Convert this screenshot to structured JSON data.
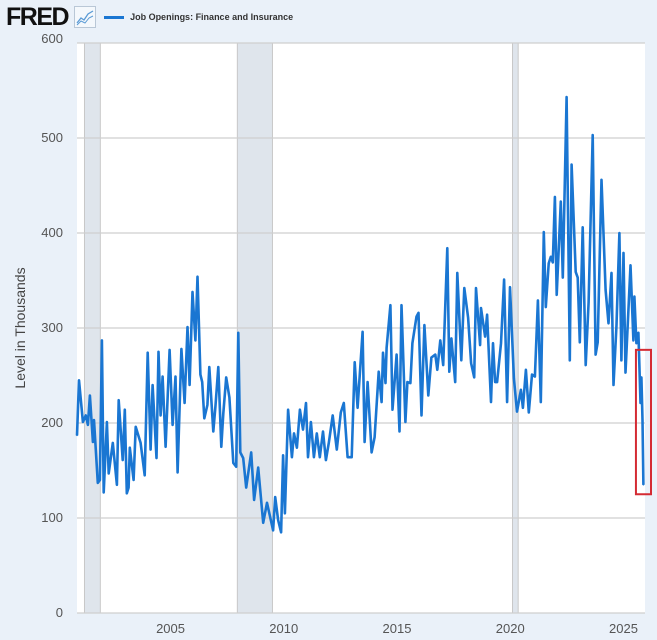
{
  "header": {
    "logo": "FRED",
    "logo_icon": "line-chart-icon"
  },
  "chart_data": {
    "type": "line",
    "title": "",
    "xlabel": "",
    "ylabel": "Level in Thousands",
    "xlim": [
      2000.87,
      2025.95
    ],
    "ylim": [
      0,
      600
    ],
    "grid": true,
    "legend_placement": "top-left",
    "y_ticks": [
      "0",
      "100",
      "200",
      "300",
      "400",
      "500",
      "600"
    ],
    "x_ticks": [
      "2005",
      "2010",
      "2015",
      "2020",
      "2025"
    ],
    "recessions": [
      [
        2001.2,
        2001.9
      ],
      [
        2007.95,
        2009.5
      ],
      [
        2020.1,
        2020.35
      ]
    ],
    "highlight_box": {
      "x": [
        2025.55,
        2025.95
      ],
      "y": [
        125,
        277
      ],
      "color": "#d42b33"
    },
    "series": [
      {
        "name": "Job Openings: Finance and Insurance",
        "color": "#1a76d2",
        "points": [
          [
            2000.87,
            187
          ],
          [
            2000.96,
            245
          ],
          [
            2001.13,
            201
          ],
          [
            2001.26,
            208
          ],
          [
            2001.35,
            198
          ],
          [
            2001.44,
            229
          ],
          [
            2001.57,
            180
          ],
          [
            2001.62,
            203
          ],
          [
            2001.79,
            137
          ],
          [
            2001.88,
            140
          ],
          [
            2001.97,
            287
          ],
          [
            2002.05,
            127
          ],
          [
            2002.19,
            201
          ],
          [
            2002.27,
            147
          ],
          [
            2002.45,
            179
          ],
          [
            2002.63,
            135
          ],
          [
            2002.71,
            224
          ],
          [
            2002.89,
            161
          ],
          [
            2002.98,
            214
          ],
          [
            2003.07,
            126
          ],
          [
            2003.15,
            132
          ],
          [
            2003.2,
            174
          ],
          [
            2003.37,
            140
          ],
          [
            2003.46,
            196
          ],
          [
            2003.68,
            179
          ],
          [
            2003.86,
            145
          ],
          [
            2003.99,
            274
          ],
          [
            2004.12,
            172
          ],
          [
            2004.21,
            240
          ],
          [
            2004.38,
            163
          ],
          [
            2004.47,
            275
          ],
          [
            2004.56,
            208
          ],
          [
            2004.65,
            249
          ],
          [
            2004.78,
            175
          ],
          [
            2004.96,
            277
          ],
          [
            2005.09,
            198
          ],
          [
            2005.22,
            249
          ],
          [
            2005.31,
            148
          ],
          [
            2005.48,
            278
          ],
          [
            2005.62,
            221
          ],
          [
            2005.75,
            301
          ],
          [
            2005.84,
            240
          ],
          [
            2005.97,
            338
          ],
          [
            2006.1,
            287
          ],
          [
            2006.19,
            354
          ],
          [
            2006.32,
            251
          ],
          [
            2006.4,
            243
          ],
          [
            2006.49,
            205
          ],
          [
            2006.63,
            219
          ],
          [
            2006.71,
            259
          ],
          [
            2006.89,
            191
          ],
          [
            2006.98,
            217
          ],
          [
            2007.11,
            259
          ],
          [
            2007.24,
            175
          ],
          [
            2007.33,
            210
          ],
          [
            2007.46,
            248
          ],
          [
            2007.6,
            227
          ],
          [
            2007.77,
            158
          ],
          [
            2007.9,
            154
          ],
          [
            2007.99,
            295
          ],
          [
            2008.08,
            169
          ],
          [
            2008.21,
            163
          ],
          [
            2008.34,
            132
          ],
          [
            2008.56,
            169
          ],
          [
            2008.69,
            119
          ],
          [
            2008.87,
            153
          ],
          [
            2009.09,
            95
          ],
          [
            2009.26,
            116
          ],
          [
            2009.53,
            87
          ],
          [
            2009.62,
            122
          ],
          [
            2009.75,
            98
          ],
          [
            2009.88,
            85
          ],
          [
            2009.97,
            166
          ],
          [
            2010.05,
            105
          ],
          [
            2010.19,
            214
          ],
          [
            2010.36,
            164
          ],
          [
            2010.45,
            189
          ],
          [
            2010.58,
            174
          ],
          [
            2010.71,
            214
          ],
          [
            2010.85,
            193
          ],
          [
            2010.98,
            221
          ],
          [
            2011.07,
            164
          ],
          [
            2011.2,
            201
          ],
          [
            2011.33,
            164
          ],
          [
            2011.46,
            189
          ],
          [
            2011.59,
            164
          ],
          [
            2011.73,
            191
          ],
          [
            2011.86,
            161
          ],
          [
            2011.99,
            179
          ],
          [
            2012.16,
            208
          ],
          [
            2012.34,
            172
          ],
          [
            2012.52,
            211
          ],
          [
            2012.65,
            221
          ],
          [
            2012.82,
            164
          ],
          [
            2013.0,
            164
          ],
          [
            2013.13,
            264
          ],
          [
            2013.26,
            216
          ],
          [
            2013.48,
            296
          ],
          [
            2013.57,
            180
          ],
          [
            2013.7,
            243
          ],
          [
            2013.88,
            169
          ],
          [
            2014.01,
            185
          ],
          [
            2014.19,
            254
          ],
          [
            2014.32,
            222
          ],
          [
            2014.38,
            274
          ],
          [
            2014.49,
            242
          ],
          [
            2014.54,
            279
          ],
          [
            2014.71,
            324
          ],
          [
            2014.8,
            214
          ],
          [
            2014.98,
            272
          ],
          [
            2015.11,
            191
          ],
          [
            2015.2,
            324
          ],
          [
            2015.37,
            201
          ],
          [
            2015.46,
            243
          ],
          [
            2015.59,
            242
          ],
          [
            2015.68,
            284
          ],
          [
            2015.86,
            312
          ],
          [
            2015.95,
            316
          ],
          [
            2016.08,
            208
          ],
          [
            2016.21,
            303
          ],
          [
            2016.38,
            229
          ],
          [
            2016.52,
            269
          ],
          [
            2016.69,
            272
          ],
          [
            2016.78,
            256
          ],
          [
            2016.91,
            287
          ],
          [
            2017.04,
            261
          ],
          [
            2017.22,
            384
          ],
          [
            2017.31,
            254
          ],
          [
            2017.4,
            289
          ],
          [
            2017.57,
            243
          ],
          [
            2017.66,
            358
          ],
          [
            2017.84,
            266
          ],
          [
            2017.97,
            342
          ],
          [
            2018.14,
            311
          ],
          [
            2018.27,
            263
          ],
          [
            2018.41,
            248
          ],
          [
            2018.49,
            342
          ],
          [
            2018.67,
            282
          ],
          [
            2018.71,
            321
          ],
          [
            2018.89,
            291
          ],
          [
            2018.98,
            314
          ],
          [
            2019.15,
            222
          ],
          [
            2019.24,
            284
          ],
          [
            2019.33,
            243
          ],
          [
            2019.42,
            243
          ],
          [
            2019.59,
            284
          ],
          [
            2019.73,
            351
          ],
          [
            2019.86,
            222
          ],
          [
            2019.99,
            343
          ],
          [
            2020.16,
            247
          ],
          [
            2020.3,
            212
          ],
          [
            2020.47,
            235
          ],
          [
            2020.56,
            216
          ],
          [
            2020.69,
            256
          ],
          [
            2020.82,
            211
          ],
          [
            2020.96,
            251
          ],
          [
            2021.09,
            249
          ],
          [
            2021.22,
            329
          ],
          [
            2021.35,
            222
          ],
          [
            2021.48,
            401
          ],
          [
            2021.57,
            322
          ],
          [
            2021.7,
            368
          ],
          [
            2021.79,
            375
          ],
          [
            2021.88,
            369
          ],
          [
            2021.97,
            438
          ],
          [
            2022.05,
            335
          ],
          [
            2022.23,
            433
          ],
          [
            2022.32,
            353
          ],
          [
            2022.49,
            543
          ],
          [
            2022.63,
            266
          ],
          [
            2022.71,
            472
          ],
          [
            2022.89,
            359
          ],
          [
            2022.98,
            353
          ],
          [
            2023.07,
            285
          ],
          [
            2023.2,
            406
          ],
          [
            2023.33,
            261
          ],
          [
            2023.46,
            327
          ],
          [
            2023.64,
            503
          ],
          [
            2023.77,
            272
          ],
          [
            2023.86,
            285
          ],
          [
            2024.03,
            456
          ],
          [
            2024.21,
            340
          ],
          [
            2024.34,
            305
          ],
          [
            2024.47,
            358
          ],
          [
            2024.56,
            240
          ],
          [
            2024.69,
            303
          ],
          [
            2024.82,
            400
          ],
          [
            2024.91,
            266
          ],
          [
            2025.0,
            379
          ],
          [
            2025.09,
            253
          ],
          [
            2025.31,
            366
          ],
          [
            2025.44,
            287
          ],
          [
            2025.48,
            333
          ],
          [
            2025.57,
            284
          ],
          [
            2025.66,
            295
          ],
          [
            2025.75,
            221
          ],
          [
            2025.79,
            248
          ],
          [
            2025.84,
            203
          ],
          [
            2025.88,
            135
          ]
        ]
      }
    ]
  }
}
